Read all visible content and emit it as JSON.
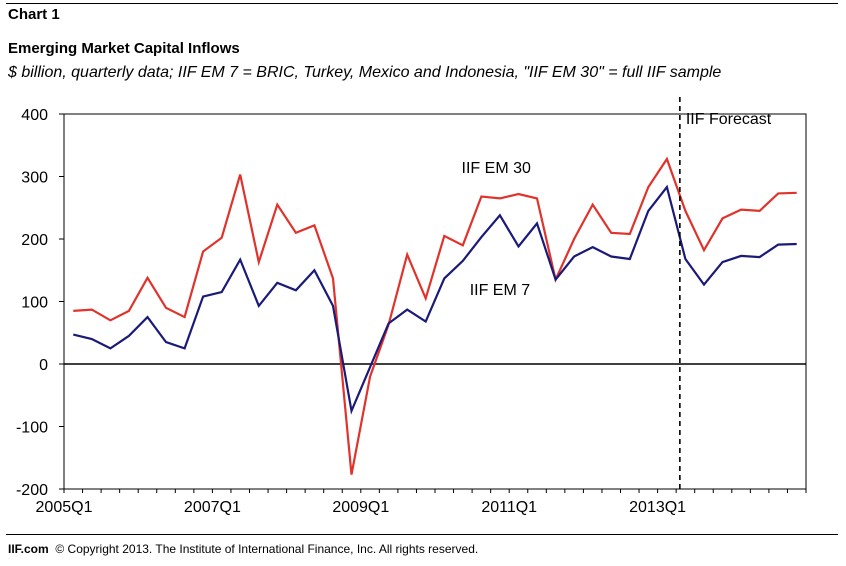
{
  "header": {
    "chart_number": "Chart 1",
    "title": "Emerging Market Capital Inflows",
    "subtitle": "$ billion, quarterly data; IIF EM 7 = BRIC, Turkey, Mexico and Indonesia, \"IIF EM 30\" = full IIF sample"
  },
  "footer": {
    "brand": "IIF.com",
    "copyright": "© Copyright 2013.  The Institute of International Finance, Inc. All rights reserved."
  },
  "chart_data": {
    "type": "line",
    "title": "Emerging Market Capital Inflows",
    "xlabel": "",
    "ylabel": "",
    "ylim": [
      -200,
      400
    ],
    "yticks": [
      -200,
      -100,
      0,
      100,
      200,
      300,
      400
    ],
    "x_tick_labels": [
      "2005Q1",
      "2007Q1",
      "2009Q1",
      "2011Q1",
      "2013Q1"
    ],
    "x_tick_quarter_index": [
      0,
      8,
      16,
      24,
      32
    ],
    "zero_line": true,
    "forecast_marker": {
      "label": "IIF Forecast",
      "quarter_index": 33.2
    },
    "x": [
      "2005Q1",
      "2005Q2",
      "2005Q3",
      "2005Q4",
      "2006Q1",
      "2006Q2",
      "2006Q3",
      "2006Q4",
      "2007Q1",
      "2007Q2",
      "2007Q3",
      "2007Q4",
      "2008Q1",
      "2008Q2",
      "2008Q3",
      "2008Q4",
      "2009Q1",
      "2009Q2",
      "2009Q3",
      "2009Q4",
      "2010Q1",
      "2010Q2",
      "2010Q3",
      "2010Q4",
      "2011Q1",
      "2011Q2",
      "2011Q3",
      "2011Q4",
      "2012Q1",
      "2012Q2",
      "2012Q3",
      "2012Q4",
      "2013Q1",
      "2013Q2",
      "2013Q3",
      "2013Q4",
      "2014Q1",
      "2014Q2",
      "2014Q3",
      "2014Q4"
    ],
    "series": [
      {
        "name": "IIF EM 30",
        "color": "#e0332b",
        "values": [
          85,
          87,
          70,
          85,
          138,
          90,
          75,
          180,
          202,
          303,
          163,
          255,
          210,
          222,
          137,
          -177,
          -20,
          63,
          175,
          105,
          205,
          190,
          268,
          265,
          272,
          265,
          135,
          200,
          255,
          210,
          208,
          283,
          328,
          245,
          182,
          233,
          247,
          245,
          273,
          274
        ]
      },
      {
        "name": "IIF EM 7",
        "color": "#1b1a78",
        "values": [
          47,
          40,
          25,
          45,
          75,
          35,
          25,
          108,
          115,
          167,
          93,
          130,
          118,
          150,
          93,
          -75,
          -5,
          65,
          87,
          68,
          137,
          165,
          203,
          238,
          188,
          225,
          135,
          172,
          187,
          172,
          168,
          245,
          283,
          168,
          127,
          163,
          173,
          171,
          191,
          192
        ]
      }
    ],
    "series_label_positions": [
      {
        "series": "IIF EM 30",
        "x_index": 23.3,
        "y": 315
      },
      {
        "series": "IIF EM 7",
        "x_index": 23.5,
        "y": 120
      }
    ]
  }
}
